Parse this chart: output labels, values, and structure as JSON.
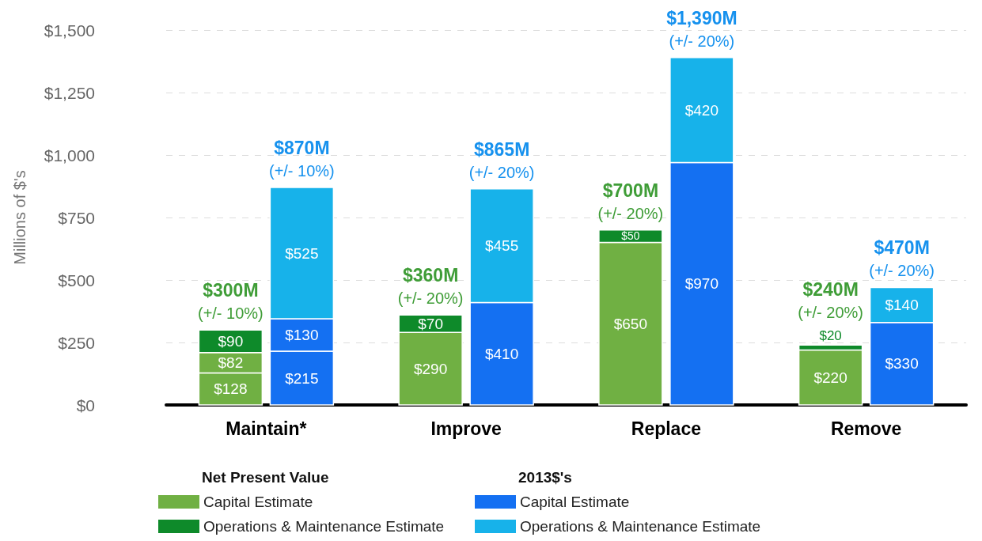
{
  "chart_data": {
    "type": "bar",
    "ylabel": "Millions of $'s",
    "categories": [
      "Maintain*",
      "Improve",
      "Replace",
      "Remove"
    ],
    "ylim": [
      0,
      1500
    ],
    "yticks": [
      {
        "value": 0,
        "label": "$0"
      },
      {
        "value": 250,
        "label": "$250"
      },
      {
        "value": 500,
        "label": "$500"
      },
      {
        "value": 750,
        "label": "$750"
      },
      {
        "value": 1000,
        "label": "$1,000"
      },
      {
        "value": 1250,
        "label": "$1,250"
      },
      {
        "value": 1500,
        "label": "$1,500"
      }
    ],
    "grid": "y",
    "legend": "bottom",
    "legend_title": [
      "Net Present Value",
      "2013$'s"
    ],
    "data_labels": true,
    "series": [
      {
        "name": "Capital Estimate",
        "color": "#70b043",
        "values": [
          128,
          290,
          650,
          220
        ],
        "base": [
          0,
          0,
          0,
          0
        ],
        "value_labels": [
          "$128",
          "$290",
          "$650",
          "$220"
        ]
      },
      {
        "color": "#70b043",
        "values": [
          82,
          null,
          null,
          null
        ],
        "base": [
          128,
          null,
          null,
          null
        ],
        "value_labels": [
          "$82",
          null,
          null,
          null
        ]
      },
      {
        "name": "Operations & Maintenance Estimate",
        "color": "#0e8a2a",
        "values": [
          90,
          70,
          50,
          20
        ],
        "base": [
          210,
          290,
          650,
          220
        ],
        "value_labels": [
          "$90",
          "$70",
          "$50",
          "$20"
        ]
      },
      {
        "name": "Capital Estimate",
        "color": "#1470f2",
        "values": [
          215,
          410,
          970,
          330
        ],
        "base": [
          0,
          0,
          0,
          0
        ],
        "value_labels": [
          "$215",
          "$410",
          "$970",
          "$330"
        ]
      },
      {
        "color": "#1470f2",
        "values": [
          130,
          null,
          null,
          null
        ],
        "base": [
          215,
          null,
          null,
          null
        ],
        "value_labels": [
          "$130",
          null,
          null,
          null
        ]
      },
      {
        "name": "Operations & Maintenance Estimate",
        "color": "#17b2ea",
        "values": [
          525,
          455,
          420,
          140
        ],
        "base": [
          345,
          410,
          970,
          330
        ],
        "value_labels": [
          "$525",
          "$455",
          "$420",
          "$140"
        ]
      }
    ],
    "totals": [
      [
        "$300M\n(+/- 10%)",
        "$360M\n(+/- 20%)",
        "$700M\n(+/- 20%)",
        "$240M\n(+/- 20%)"
      ],
      [
        "$870M\n(+/- 10%)",
        "$865M\n(+/- 20%)",
        "$1,390M\n(+/- 20%)",
        "$470M\n(+/- 20%)"
      ]
    ]
  }
}
